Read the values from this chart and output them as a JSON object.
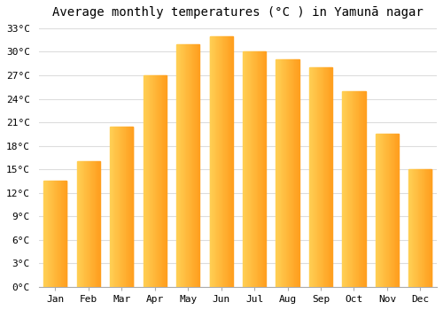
{
  "title": "Average monthly temperatures (°C ) in Yamunā nagar",
  "months": [
    "Jan",
    "Feb",
    "Mar",
    "Apr",
    "May",
    "Jun",
    "Jul",
    "Aug",
    "Sep",
    "Oct",
    "Nov",
    "Dec"
  ],
  "values": [
    13.5,
    16.0,
    20.5,
    27.0,
    31.0,
    32.0,
    30.0,
    29.0,
    28.0,
    25.0,
    19.5,
    15.0
  ],
  "bar_color_left": "#FFD055",
  "bar_color_right": "#FFA020",
  "ylim": [
    0,
    33
  ],
  "yticks": [
    0,
    3,
    6,
    9,
    12,
    15,
    18,
    21,
    24,
    27,
    30,
    33
  ],
  "ytick_labels": [
    "0°C",
    "3°C",
    "6°C",
    "9°C",
    "12°C",
    "15°C",
    "18°C",
    "21°C",
    "24°C",
    "27°C",
    "30°C",
    "33°C"
  ],
  "bg_color": "#ffffff",
  "plot_bg_color": "#ffffff",
  "grid_color": "#dddddd",
  "title_fontsize": 10,
  "tick_fontsize": 8,
  "bar_width": 0.7
}
